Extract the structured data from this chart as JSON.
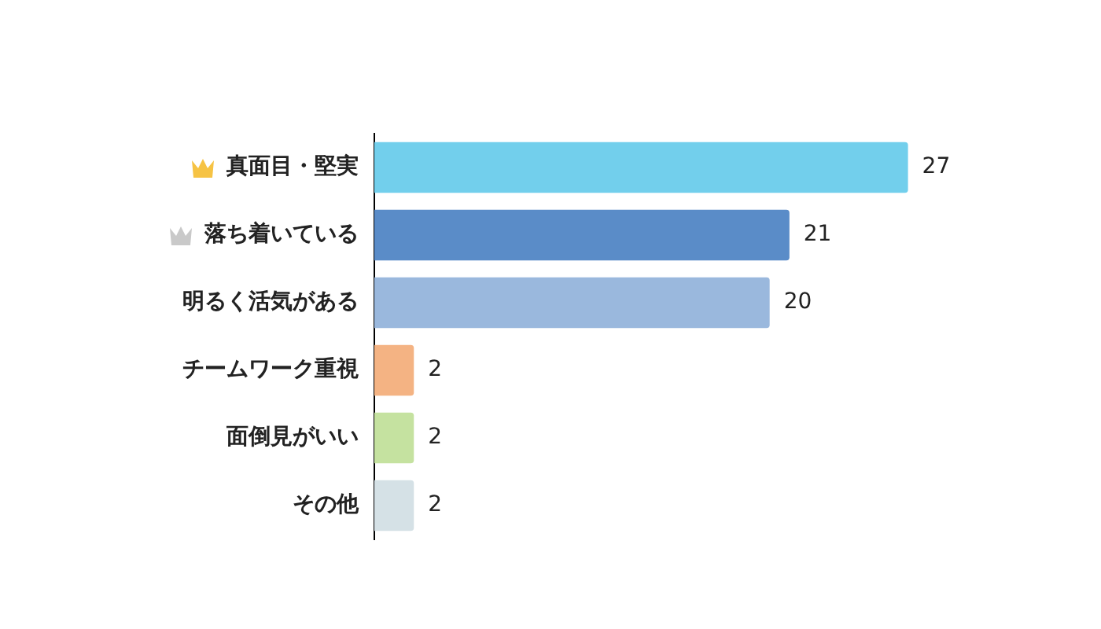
{
  "chart_data": {
    "type": "bar",
    "orientation": "horizontal",
    "categories": [
      "真面目・堅実",
      "落ち着いている",
      "明るく活気がある",
      "チームワーク重視",
      "面倒見がいい",
      "その他"
    ],
    "values": [
      27,
      21,
      20,
      2,
      2,
      2
    ],
    "colors": [
      "#72cfec",
      "#5a8cc8",
      "#9ab8dd",
      "#f4b383",
      "#c5e2a0",
      "#d5e1e6"
    ],
    "data_labels": true,
    "grid": false,
    "legend": false,
    "tick_labels": "y"
  }
}
